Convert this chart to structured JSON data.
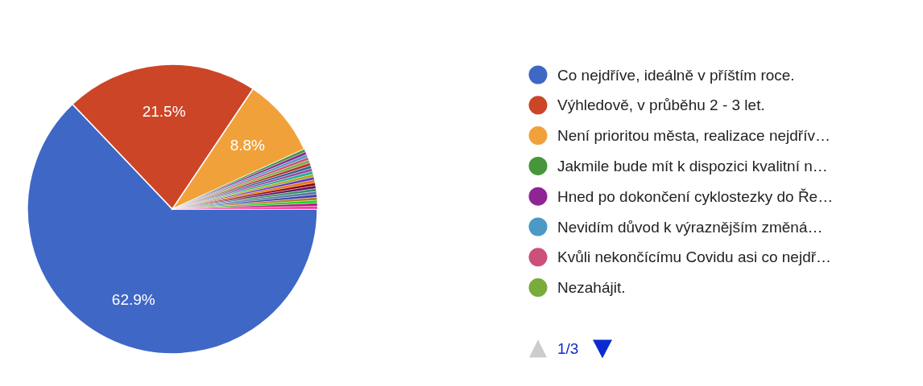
{
  "chart_data": {
    "type": "pie",
    "categories": [
      "Co nejdříve, ideálně v příštím roce.",
      "Výhledově, v průběhu 2 - 3 let.",
      "Není prioritou města, realizace nejdřív…",
      "Jakmile bude mít k dispozici kvalitní n…",
      "Hned po dokončení cyklostezky do Ře…",
      "Nevidím důvod k výraznějším změná…",
      "Kvůli nekončícímu Covidu asi co nejdř…",
      "Nezahájit.",
      null,
      null,
      null,
      null,
      null,
      null,
      null,
      null,
      null,
      null,
      null,
      null,
      null,
      null,
      null,
      null
    ],
    "values": [
      62.9,
      21.5,
      8.8,
      0.324,
      0.324,
      0.324,
      0.324,
      0.324,
      0.324,
      0.324,
      0.324,
      0.324,
      0.324,
      0.324,
      0.324,
      0.324,
      0.324,
      0.324,
      0.324,
      0.324,
      0.324,
      0.324,
      0.324,
      0.32
    ],
    "colors": [
      "#3f67c6",
      "#cc4527",
      "#f1a13a",
      "#46963a",
      "#8e2595",
      "#4b9ac6",
      "#cc5078",
      "#79ac3a",
      "#b82e2e",
      "#316395",
      "#994499",
      "#22aa99",
      "#aaaa11",
      "#6633cc",
      "#e67300",
      "#8b0707",
      "#651067",
      "#329262",
      "#5574a6",
      "#3b3eac",
      "#b77322",
      "#16d620",
      "#b91383",
      "#f4359e"
    ],
    "value_labels": [
      "62.9%",
      "21.5%",
      "8.8%",
      null,
      null,
      null,
      null,
      null,
      null,
      null,
      null,
      null,
      null,
      null,
      null,
      null,
      null,
      null,
      null,
      null,
      null,
      null,
      null,
      null
    ],
    "legend": "right",
    "annotations": [
      "1/3"
    ]
  }
}
